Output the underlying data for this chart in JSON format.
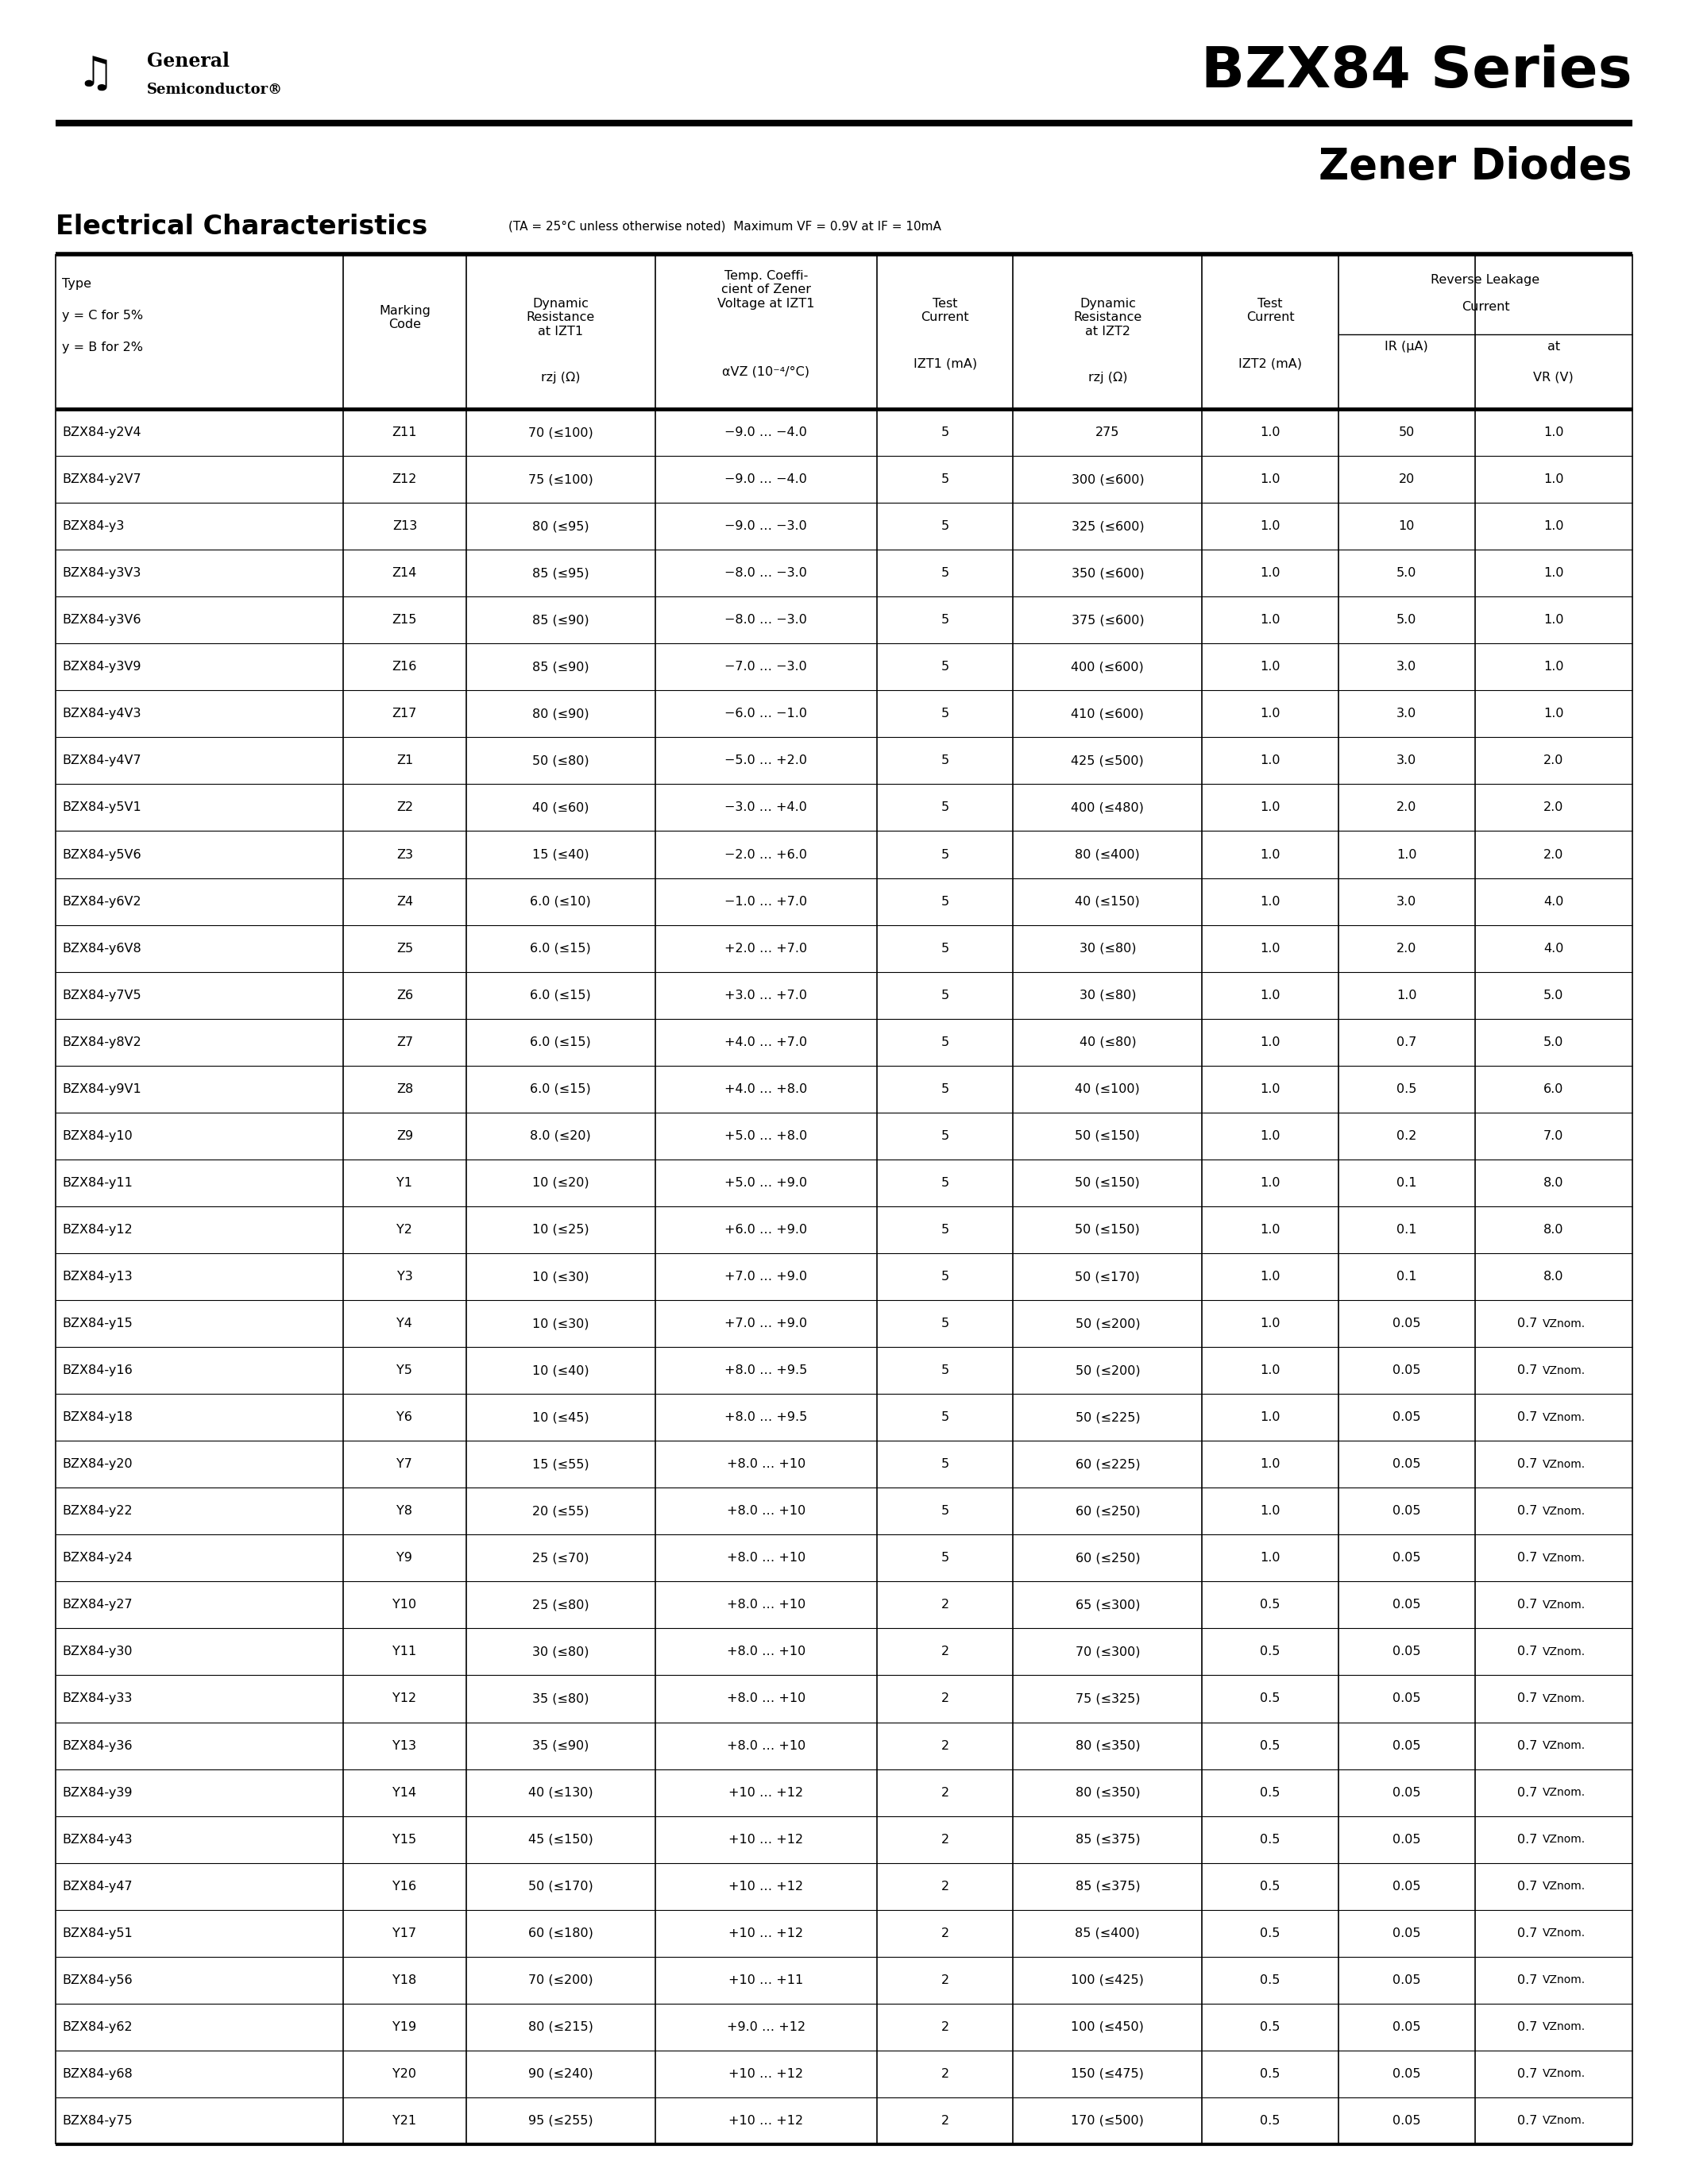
{
  "title1": "BZX84 Series",
  "title2": "Zener Diodes",
  "company_name1": "General",
  "company_name2": "Semiconductor®",
  "rows": [
    [
      "BZX84-y2V4",
      "Z11",
      "70 (≤100)",
      "−9.0 … −4.0",
      "5",
      "275",
      "1.0",
      "50",
      "1.0"
    ],
    [
      "BZX84-y2V7",
      "Z12",
      "75 (≤100)",
      "−9.0 … −4.0",
      "5",
      "300 (≤600)",
      "1.0",
      "20",
      "1.0"
    ],
    [
      "BZX84-y3",
      "Z13",
      "80 (≤95)",
      "−9.0 … −3.0",
      "5",
      "325 (≤600)",
      "1.0",
      "10",
      "1.0"
    ],
    [
      "BZX84-y3V3",
      "Z14",
      "85 (≤95)",
      "−8.0 … −3.0",
      "5",
      "350 (≤600)",
      "1.0",
      "5.0",
      "1.0"
    ],
    [
      "BZX84-y3V6",
      "Z15",
      "85 (≤90)",
      "−8.0 … −3.0",
      "5",
      "375 (≤600)",
      "1.0",
      "5.0",
      "1.0"
    ],
    [
      "BZX84-y3V9",
      "Z16",
      "85 (≤90)",
      "−7.0 … −3.0",
      "5",
      "400 (≤600)",
      "1.0",
      "3.0",
      "1.0"
    ],
    [
      "BZX84-y4V3",
      "Z17",
      "80 (≤90)",
      "−6.0 … −1.0",
      "5",
      "410 (≤600)",
      "1.0",
      "3.0",
      "1.0"
    ],
    [
      "BZX84-y4V7",
      "Z1",
      "50 (≤80)",
      "−5.0 … +2.0",
      "5",
      "425 (≤500)",
      "1.0",
      "3.0",
      "2.0"
    ],
    [
      "BZX84-y5V1",
      "Z2",
      "40 (≤60)",
      "−3.0 … +4.0",
      "5",
      "400 (≤480)",
      "1.0",
      "2.0",
      "2.0"
    ],
    [
      "BZX84-y5V6",
      "Z3",
      "15 (≤40)",
      "−2.0 … +6.0",
      "5",
      "80 (≤400)",
      "1.0",
      "1.0",
      "2.0"
    ],
    [
      "BZX84-y6V2",
      "Z4",
      "6.0 (≤10)",
      "−1.0 … +7.0",
      "5",
      "40 (≤150)",
      "1.0",
      "3.0",
      "4.0"
    ],
    [
      "BZX84-y6V8",
      "Z5",
      "6.0 (≤15)",
      "+2.0 … +7.0",
      "5",
      "30 (≤80)",
      "1.0",
      "2.0",
      "4.0"
    ],
    [
      "BZX84-y7V5",
      "Z6",
      "6.0 (≤15)",
      "+3.0 … +7.0",
      "5",
      "30 (≤80)",
      "1.0",
      "1.0",
      "5.0"
    ],
    [
      "BZX84-y8V2",
      "Z7",
      "6.0 (≤15)",
      "+4.0 … +7.0",
      "5",
      "40 (≤80)",
      "1.0",
      "0.7",
      "5.0"
    ],
    [
      "BZX84-y9V1",
      "Z8",
      "6.0 (≤15)",
      "+4.0 … +8.0",
      "5",
      "40 (≤100)",
      "1.0",
      "0.5",
      "6.0"
    ],
    [
      "BZX84-y10",
      "Z9",
      "8.0 (≤20)",
      "+5.0 … +8.0",
      "5",
      "50 (≤150)",
      "1.0",
      "0.2",
      "7.0"
    ],
    [
      "BZX84-y11",
      "Y1",
      "10 (≤20)",
      "+5.0 … +9.0",
      "5",
      "50 (≤150)",
      "1.0",
      "0.1",
      "8.0"
    ],
    [
      "BZX84-y12",
      "Y2",
      "10 (≤25)",
      "+6.0 … +9.0",
      "5",
      "50 (≤150)",
      "1.0",
      "0.1",
      "8.0"
    ],
    [
      "BZX84-y13",
      "Y3",
      "10 (≤30)",
      "+7.0 … +9.0",
      "5",
      "50 (≤170)",
      "1.0",
      "0.1",
      "8.0"
    ],
    [
      "BZX84-y15",
      "Y4",
      "10 (≤30)",
      "+7.0 … +9.0",
      "5",
      "50 (≤200)",
      "1.0",
      "0.05",
      "0.7 VZnom."
    ],
    [
      "BZX84-y16",
      "Y5",
      "10 (≤40)",
      "+8.0 … +9.5",
      "5",
      "50 (≤200)",
      "1.0",
      "0.05",
      "0.7 VZnom."
    ],
    [
      "BZX84-y18",
      "Y6",
      "10 (≤45)",
      "+8.0 … +9.5",
      "5",
      "50 (≤225)",
      "1.0",
      "0.05",
      "0.7 VZnom."
    ],
    [
      "BZX84-y20",
      "Y7",
      "15 (≤55)",
      "+8.0 … +10",
      "5",
      "60 (≤225)",
      "1.0",
      "0.05",
      "0.7 VZnom."
    ],
    [
      "BZX84-y22",
      "Y8",
      "20 (≤55)",
      "+8.0 … +10",
      "5",
      "60 (≤250)",
      "1.0",
      "0.05",
      "0.7 VZnom."
    ],
    [
      "BZX84-y24",
      "Y9",
      "25 (≤70)",
      "+8.0 … +10",
      "5",
      "60 (≤250)",
      "1.0",
      "0.05",
      "0.7 VZnom."
    ],
    [
      "BZX84-y27",
      "Y10",
      "25 (≤80)",
      "+8.0 … +10",
      "2",
      "65 (≤300)",
      "0.5",
      "0.05",
      "0.7 VZnom."
    ],
    [
      "BZX84-y30",
      "Y11",
      "30 (≤80)",
      "+8.0 … +10",
      "2",
      "70 (≤300)",
      "0.5",
      "0.05",
      "0.7 VZnom."
    ],
    [
      "BZX84-y33",
      "Y12",
      "35 (≤80)",
      "+8.0 … +10",
      "2",
      "75 (≤325)",
      "0.5",
      "0.05",
      "0.7 VZnom."
    ],
    [
      "BZX84-y36",
      "Y13",
      "35 (≤90)",
      "+8.0 … +10",
      "2",
      "80 (≤350)",
      "0.5",
      "0.05",
      "0.7 VZnom."
    ],
    [
      "BZX84-y39",
      "Y14",
      "40 (≤130)",
      "+10 … +12",
      "2",
      "80 (≤350)",
      "0.5",
      "0.05",
      "0.7 VZnom."
    ],
    [
      "BZX84-y43",
      "Y15",
      "45 (≤150)",
      "+10 … +12",
      "2",
      "85 (≤375)",
      "0.5",
      "0.05",
      "0.7 VZnom."
    ],
    [
      "BZX84-y47",
      "Y16",
      "50 (≤170)",
      "+10 … +12",
      "2",
      "85 (≤375)",
      "0.5",
      "0.05",
      "0.7 VZnom."
    ],
    [
      "BZX84-y51",
      "Y17",
      "60 (≤180)",
      "+10 … +12",
      "2",
      "85 (≤400)",
      "0.5",
      "0.05",
      "0.7 VZnom."
    ],
    [
      "BZX84-y56",
      "Y18",
      "70 (≤200)",
      "+10 … +11",
      "2",
      "100 (≤425)",
      "0.5",
      "0.05",
      "0.7 VZnom."
    ],
    [
      "BZX84-y62",
      "Y19",
      "80 (≤215)",
      "+9.0 … +12",
      "2",
      "100 (≤450)",
      "0.5",
      "0.05",
      "0.7 VZnom."
    ],
    [
      "BZX84-y68",
      "Y20",
      "90 (≤240)",
      "+10 … +12",
      "2",
      "150 (≤475)",
      "0.5",
      "0.05",
      "0.7 VZnom."
    ],
    [
      "BZX84-y75",
      "Y21",
      "95 (≤255)",
      "+10 … +12",
      "2",
      "170 (≤500)",
      "0.5",
      "0.05",
      "0.7 VZnom."
    ]
  ]
}
